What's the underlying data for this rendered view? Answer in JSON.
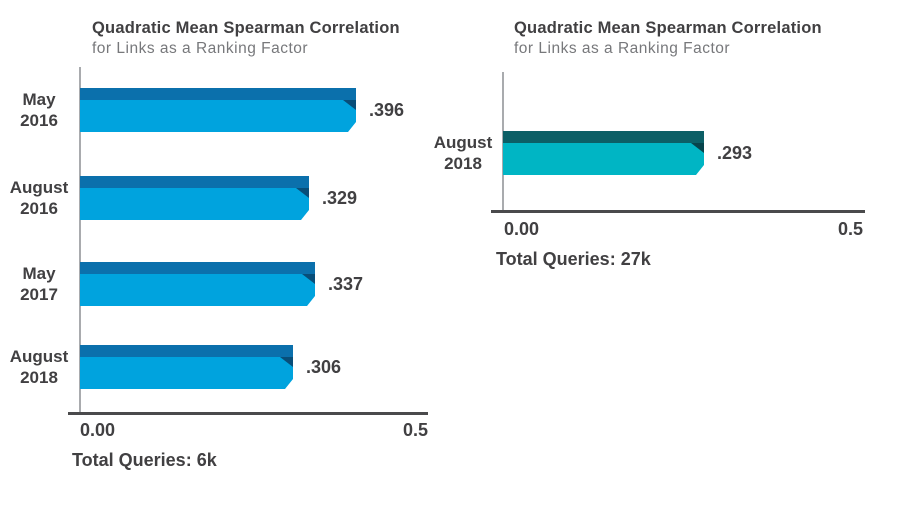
{
  "chart_data": [
    {
      "type": "bar",
      "orientation": "horizontal",
      "title": "Quadratic Mean Spearman Correlation",
      "subtitle": "for Links as a Ranking Factor",
      "categories": [
        "May 2016",
        "August 2016",
        "May 2017",
        "August 2018"
      ],
      "values": [
        0.396,
        0.329,
        0.337,
        0.306
      ],
      "value_labels": [
        ".396",
        ".329",
        ".337",
        ".306"
      ],
      "xlim": [
        0,
        0.5
      ],
      "x_tick_labels": [
        "0.00",
        "0.5"
      ],
      "grid": false,
      "legend": "none",
      "annotation": "Total Queries: 6k",
      "bar_color": "#00a3de",
      "bar_top_color": "#0b70ac",
      "bar_fold_color": "#084e79"
    },
    {
      "type": "bar",
      "orientation": "horizontal",
      "title": "Quadratic Mean Spearman Correlation",
      "subtitle": "for Links as a Ranking Factor",
      "categories": [
        "August 2018"
      ],
      "values": [
        0.293
      ],
      "value_labels": [
        ".293"
      ],
      "xlim": [
        0,
        0.5
      ],
      "x_tick_labels": [
        "0.00",
        "0.5"
      ],
      "grid": false,
      "legend": "none",
      "annotation": "Total Queries: 27k",
      "bar_color": "#00b5c4",
      "bar_top_color": "#0c5f66",
      "bar_fold_color": "#07444b"
    }
  ]
}
